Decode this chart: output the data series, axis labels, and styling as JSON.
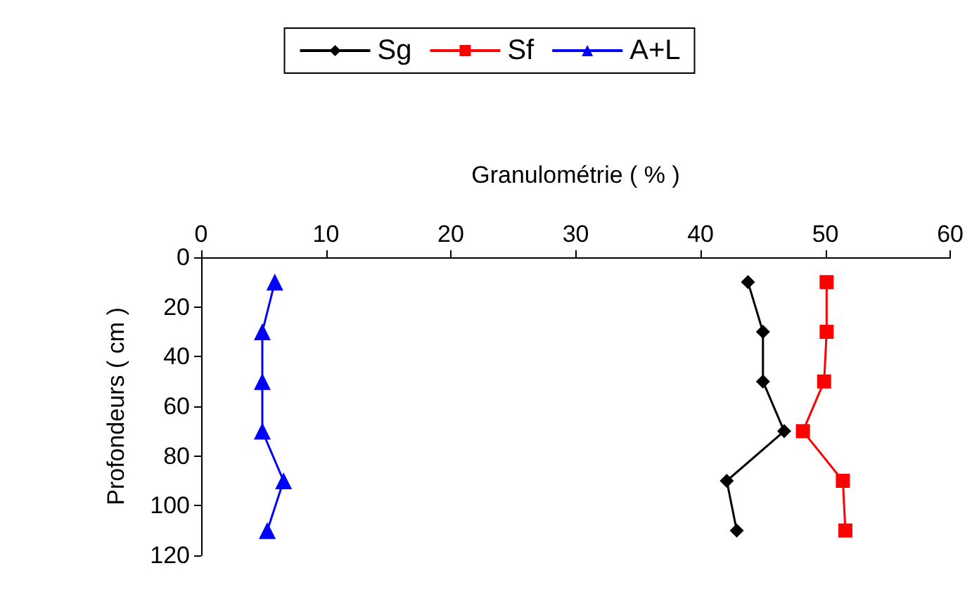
{
  "chart_data": {
    "type": "line",
    "xlabel": "Granulométrie ( % )",
    "ylabel": "Profondeurs ( cm )",
    "xlim": [
      0,
      60
    ],
    "xticks": [
      0,
      10,
      20,
      30,
      40,
      50,
      60
    ],
    "ylim": [
      120,
      0
    ],
    "yticks": [
      0,
      20,
      40,
      60,
      80,
      100,
      120
    ],
    "grid": false,
    "legend": "top",
    "line_style": "solid",
    "series": [
      {
        "name": "Sg",
        "color": "#000000",
        "marker": "diamond",
        "x": [
          43.8,
          45.0,
          45.0,
          46.7,
          42.1,
          42.9
        ],
        "values": [
          10,
          30,
          50,
          70,
          90,
          110
        ]
      },
      {
        "name": "Sf",
        "color": "#ff0000",
        "marker": "square",
        "x": [
          50.1,
          50.1,
          49.9,
          48.2,
          51.4,
          51.6
        ],
        "values": [
          10,
          30,
          50,
          70,
          90,
          110
        ]
      },
      {
        "name": "A+L",
        "color": "#0000ff",
        "marker": "triangle",
        "x": [
          5.9,
          4.9,
          4.9,
          4.9,
          6.6,
          5.3
        ],
        "values": [
          10,
          30,
          50,
          70,
          90,
          110
        ]
      }
    ]
  }
}
